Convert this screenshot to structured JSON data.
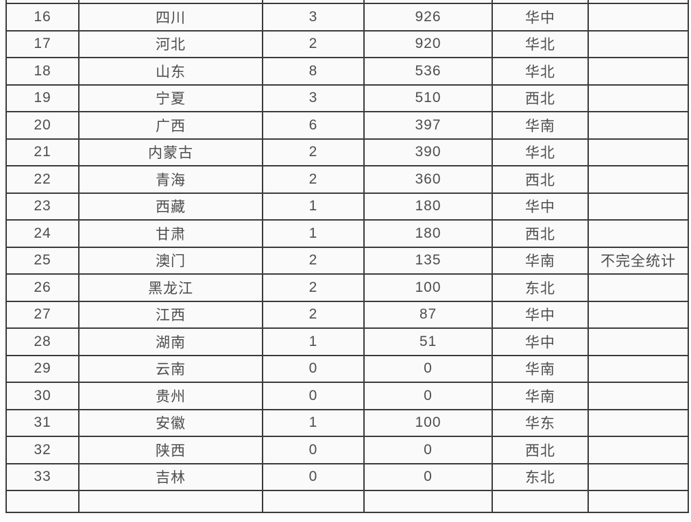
{
  "table": {
    "rows": [
      [
        "16",
        "四川",
        "3",
        "926",
        "华中",
        ""
      ],
      [
        "17",
        "河北",
        "2",
        "920",
        "华北",
        ""
      ],
      [
        "18",
        "山东",
        "8",
        "536",
        "华北",
        ""
      ],
      [
        "19",
        "宁夏",
        "3",
        "510",
        "西北",
        ""
      ],
      [
        "20",
        "广西",
        "6",
        "397",
        "华南",
        ""
      ],
      [
        "21",
        "内蒙古",
        "2",
        "390",
        "华北",
        ""
      ],
      [
        "22",
        "青海",
        "2",
        "360",
        "西北",
        ""
      ],
      [
        "23",
        "西藏",
        "1",
        "180",
        "华中",
        ""
      ],
      [
        "24",
        "甘肃",
        "1",
        "180",
        "西北",
        ""
      ],
      [
        "25",
        "澳门",
        "2",
        "135",
        "华南",
        "不完全统计"
      ],
      [
        "26",
        "黑龙江",
        "2",
        "100",
        "东北",
        ""
      ],
      [
        "27",
        "江西",
        "2",
        "87",
        "华中",
        ""
      ],
      [
        "28",
        "湖南",
        "1",
        "51",
        "华中",
        ""
      ],
      [
        "29",
        "云南",
        "0",
        "0",
        "华南",
        ""
      ],
      [
        "30",
        "贵州",
        "0",
        "0",
        "华南",
        ""
      ],
      [
        "31",
        "安徽",
        "1",
        "100",
        "华东",
        ""
      ],
      [
        "32",
        "陕西",
        "0",
        "0",
        "西北",
        ""
      ],
      [
        "33",
        "吉林",
        "0",
        "0",
        "东北",
        ""
      ]
    ],
    "column_names": [
      "rank-cell",
      "province-cell",
      "count-cell",
      "value-cell",
      "region-cell",
      "note-cell"
    ]
  }
}
